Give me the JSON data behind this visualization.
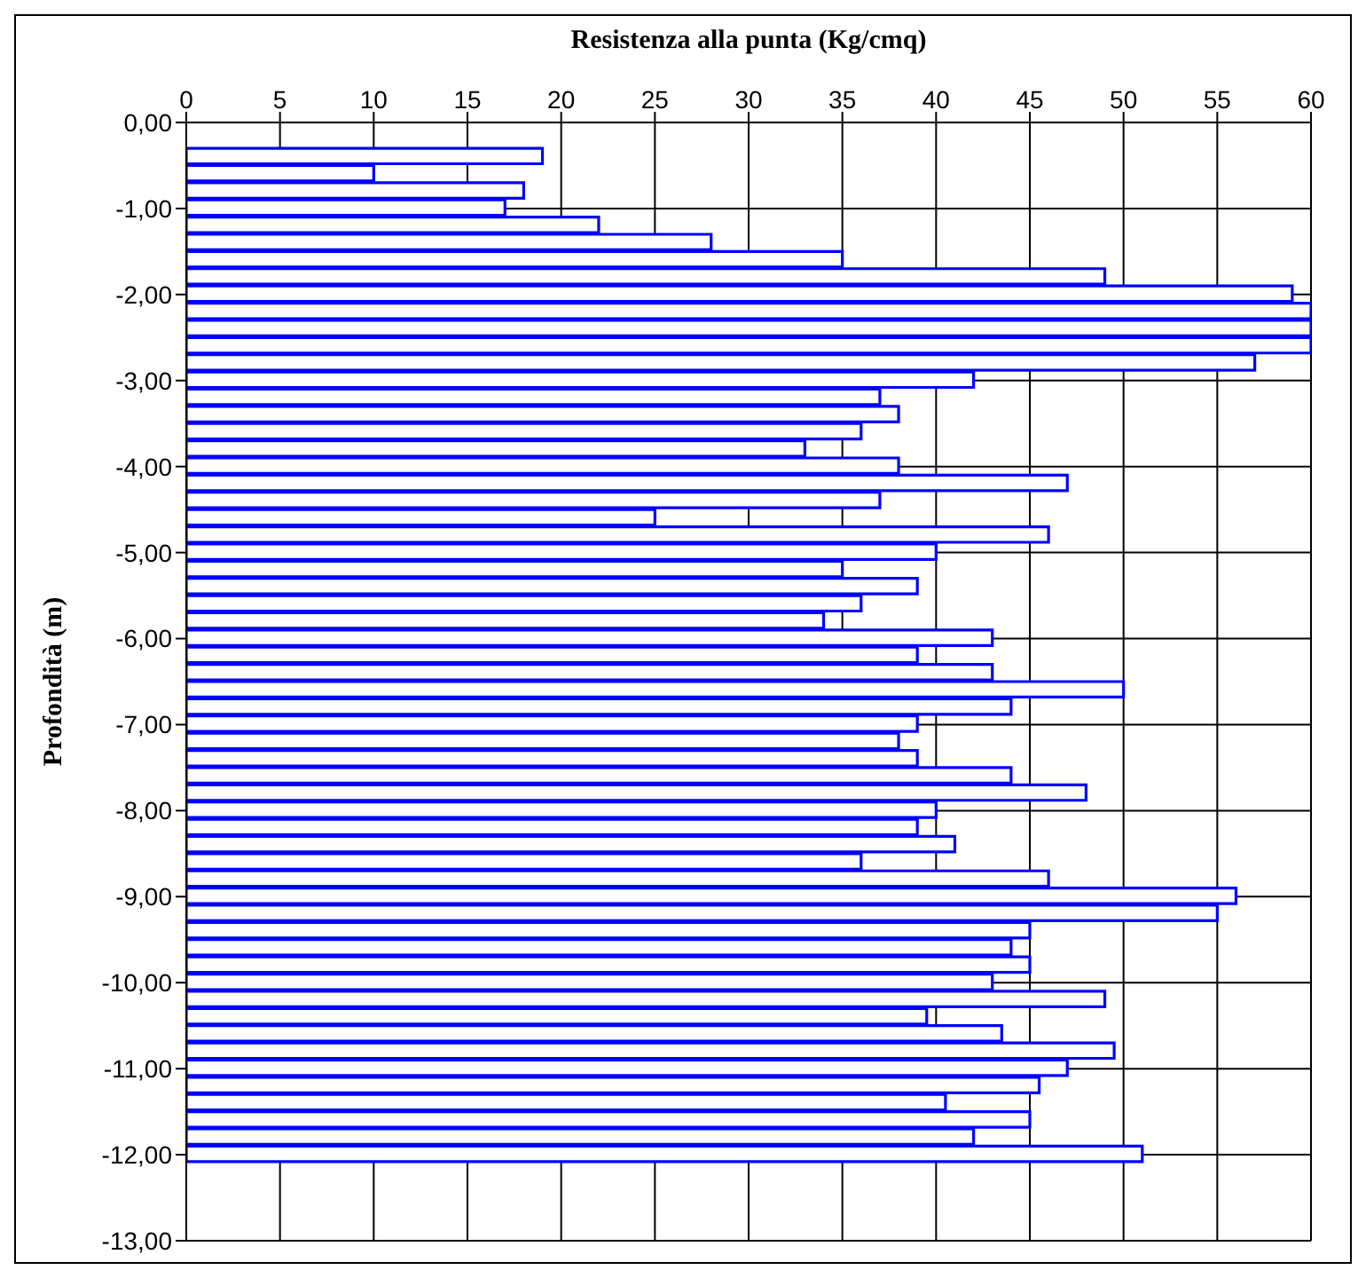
{
  "chart_data": {
    "type": "bar",
    "orientation": "horizontal",
    "xlabel": "Resistenza alla punta (Kg/cmq)",
    "ylabel": "Profondità (m)",
    "x": [
      -0.4,
      -0.6,
      -0.8,
      -1.0,
      -1.2,
      -1.4,
      -1.6,
      -1.8,
      -2.0,
      -2.2,
      -2.4,
      -2.6,
      -2.8,
      -3.0,
      -3.2,
      -3.4,
      -3.6,
      -3.8,
      -4.0,
      -4.2,
      -4.4,
      -4.6,
      -4.8,
      -5.0,
      -5.2,
      -5.4,
      -5.6,
      -5.8,
      -6.0,
      -6.2,
      -6.4,
      -6.6,
      -6.8,
      -7.0,
      -7.2,
      -7.4,
      -7.6,
      -7.8,
      -8.0,
      -8.2,
      -8.4,
      -8.6,
      -8.8,
      -9.0,
      -9.2,
      -9.4,
      -9.6,
      -9.8,
      -10.0,
      -10.2,
      -10.4,
      -10.6,
      -10.8,
      -11.0,
      -11.2,
      -11.4,
      -11.6,
      -11.8,
      -12.0
    ],
    "values": [
      19,
      10,
      18,
      17,
      22,
      28,
      35,
      49,
      59,
      60,
      60,
      60,
      57,
      42,
      37,
      38,
      36,
      33,
      38,
      47,
      37,
      25,
      46,
      40,
      35,
      39,
      36,
      34,
      43,
      39,
      43,
      50,
      44,
      39,
      38,
      39,
      44,
      48,
      40,
      39,
      41,
      36,
      46,
      56,
      55,
      45,
      44,
      45,
      43,
      49,
      39.5,
      43.5,
      49.5,
      47,
      45.5,
      40.5,
      45,
      42,
      51
    ],
    "color": "#0000ff",
    "xlim": [
      0,
      60
    ],
    "xticks": [
      0,
      5,
      10,
      15,
      20,
      25,
      30,
      35,
      40,
      45,
      50,
      55,
      60
    ],
    "ylim": [
      -13,
      0
    ],
    "yticks": [
      {
        "value": 0,
        "label": "0,00"
      },
      {
        "value": -1,
        "label": "-1,00"
      },
      {
        "value": -2,
        "label": "-2,00"
      },
      {
        "value": -3,
        "label": "-3,00"
      },
      {
        "value": -4,
        "label": "-4,00"
      },
      {
        "value": -5,
        "label": "-5,00"
      },
      {
        "value": -6,
        "label": "-6,00"
      },
      {
        "value": -7,
        "label": "-7,00"
      },
      {
        "value": -8,
        "label": "-8,00"
      },
      {
        "value": -9,
        "label": "-9,00"
      },
      {
        "value": -10,
        "label": "-10,00"
      },
      {
        "value": -11,
        "label": "-11,00"
      },
      {
        "value": -12,
        "label": "-12,00"
      },
      {
        "value": -13,
        "label": "-13,00"
      }
    ],
    "grid": true
  }
}
